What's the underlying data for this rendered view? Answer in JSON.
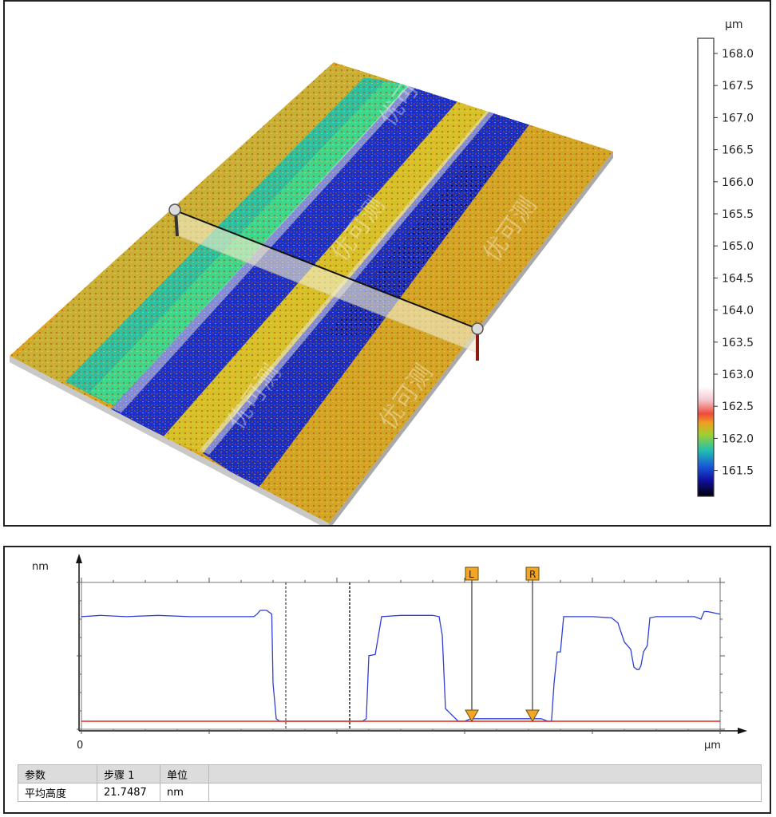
{
  "surface_view": {
    "colorbar": {
      "unit": "µm",
      "ticks": [
        "168.0",
        "167.5",
        "167.0",
        "166.5",
        "166.0",
        "165.5",
        "165.0",
        "164.5",
        "164.0",
        "163.5",
        "163.0",
        "162.5",
        "162.0",
        "161.5"
      ]
    },
    "watermark": "优可测"
  },
  "profile_panel": {
    "y_unit": "nm",
    "x_unit": "µm",
    "x_origin_label": "0",
    "cursor_left_label": "L",
    "cursor_right_label": "R"
  },
  "results_table": {
    "headers": [
      "参数",
      "步骤 1",
      "单位"
    ],
    "rows": [
      [
        "平均高度",
        "21.7487",
        "nm"
      ]
    ]
  },
  "chart_data": {
    "type": "line",
    "title": "",
    "xlabel": "µm",
    "ylabel": "nm",
    "xlim": [
      0,
      1
    ],
    "ylim": [
      0,
      1
    ],
    "series": [
      {
        "color": "#2f3fd6",
        "x": [
          0,
          0.03,
          0.07,
          0.12,
          0.17,
          0.22,
          0.27,
          0.275,
          0.28,
          0.29,
          0.298,
          0.3,
          0.305,
          0.31,
          0.32,
          0.35,
          0.4,
          0.43,
          0.436,
          0.438,
          0.44,
          0.446,
          0.45,
          0.46,
          0.47,
          0.5,
          0.53,
          0.55,
          0.56,
          0.565,
          0.57,
          0.59,
          0.6,
          0.61,
          0.64,
          0.67,
          0.7,
          0.72,
          0.73,
          0.736,
          0.74,
          0.745,
          0.75,
          0.755,
          0.76,
          0.8,
          0.83,
          0.84,
          0.85,
          0.855,
          0.86,
          0.865,
          0.87,
          0.873,
          0.876,
          0.88,
          0.886,
          0.89,
          0.9,
          0.93,
          0.96,
          0.97,
          0.975,
          0.98,
          1.0
        ],
        "y": [
          0.83,
          0.84,
          0.83,
          0.84,
          0.83,
          0.83,
          0.83,
          0.85,
          0.88,
          0.88,
          0.85,
          0.3,
          0.02,
          0.0,
          0.0,
          0.0,
          0.0,
          0.0,
          0.0,
          0.0,
          0.0,
          0.02,
          0.52,
          0.53,
          0.83,
          0.84,
          0.84,
          0.84,
          0.83,
          0.68,
          0.1,
          0.0,
          0.0,
          0.02,
          0.02,
          0.02,
          0.02,
          0.02,
          0.0,
          0.0,
          0.3,
          0.55,
          0.55,
          0.83,
          0.83,
          0.83,
          0.82,
          0.78,
          0.63,
          0.6,
          0.57,
          0.43,
          0.41,
          0.41,
          0.44,
          0.55,
          0.6,
          0.82,
          0.83,
          0.83,
          0.83,
          0.81,
          0.87,
          0.87,
          0.85
        ]
      },
      {
        "color": "#e8231c",
        "x": [
          0,
          1
        ],
        "y": [
          0.0,
          0.0
        ]
      }
    ]
  }
}
